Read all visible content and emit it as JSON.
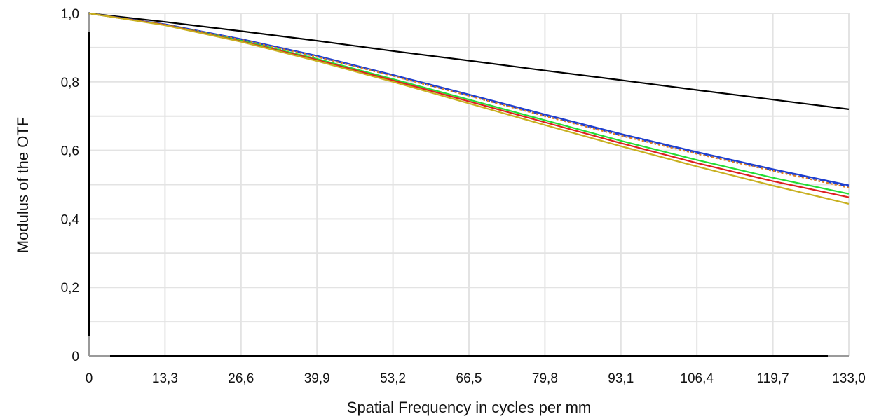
{
  "chart_data": {
    "type": "line",
    "title": "",
    "xlabel": "Spatial Frequency in cycles per mm",
    "ylabel": "Modulus of the OTF",
    "xlim": [
      0,
      133
    ],
    "ylim": [
      0,
      1
    ],
    "x_ticks": [
      "0",
      "13,3",
      "26,6",
      "39,9",
      "53,2",
      "66,5",
      "79,8",
      "93,1",
      "106,4",
      "119,7",
      "133,0"
    ],
    "y_ticks": [
      "0",
      "0,2",
      "0,4",
      "0,6",
      "0,8",
      "1,0"
    ],
    "grid": true,
    "legend": "none",
    "x": [
      0,
      13.3,
      26.6,
      39.9,
      53.2,
      66.5,
      79.8,
      93.1,
      106.4,
      119.7,
      133.0
    ],
    "series": [
      {
        "color": "#000000",
        "style": "solid",
        "values": [
          1.0,
          0.975,
          0.948,
          0.92,
          0.89,
          0.862,
          0.833,
          0.805,
          0.776,
          0.748,
          0.72
        ]
      },
      {
        "color": "#1f3fcf",
        "style": "solid",
        "values": [
          1.0,
          0.968,
          0.925,
          0.876,
          0.82,
          0.763,
          0.705,
          0.648,
          0.595,
          0.545,
          0.498
        ]
      },
      {
        "color": "#1f3fcf",
        "style": "dashed",
        "values": [
          1.0,
          0.967,
          0.924,
          0.874,
          0.818,
          0.76,
          0.702,
          0.645,
          0.592,
          0.542,
          0.494
        ]
      },
      {
        "color": "#e08020",
        "style": "dotted",
        "values": [
          1.0,
          0.967,
          0.923,
          0.873,
          0.817,
          0.759,
          0.7,
          0.643,
          0.59,
          0.54,
          0.491
        ]
      },
      {
        "color": "#22dd33",
        "style": "solid",
        "values": [
          1.0,
          0.966,
          0.92,
          0.867,
          0.808,
          0.748,
          0.688,
          0.628,
          0.572,
          0.52,
          0.473
        ]
      },
      {
        "color": "#dd2020",
        "style": "solid",
        "values": [
          1.0,
          0.966,
          0.918,
          0.864,
          0.804,
          0.743,
          0.682,
          0.621,
          0.563,
          0.51,
          0.463
        ]
      },
      {
        "color": "#c8b020",
        "style": "solid",
        "values": [
          1.0,
          0.965,
          0.917,
          0.861,
          0.8,
          0.737,
          0.674,
          0.612,
          0.553,
          0.497,
          0.444
        ]
      }
    ]
  }
}
